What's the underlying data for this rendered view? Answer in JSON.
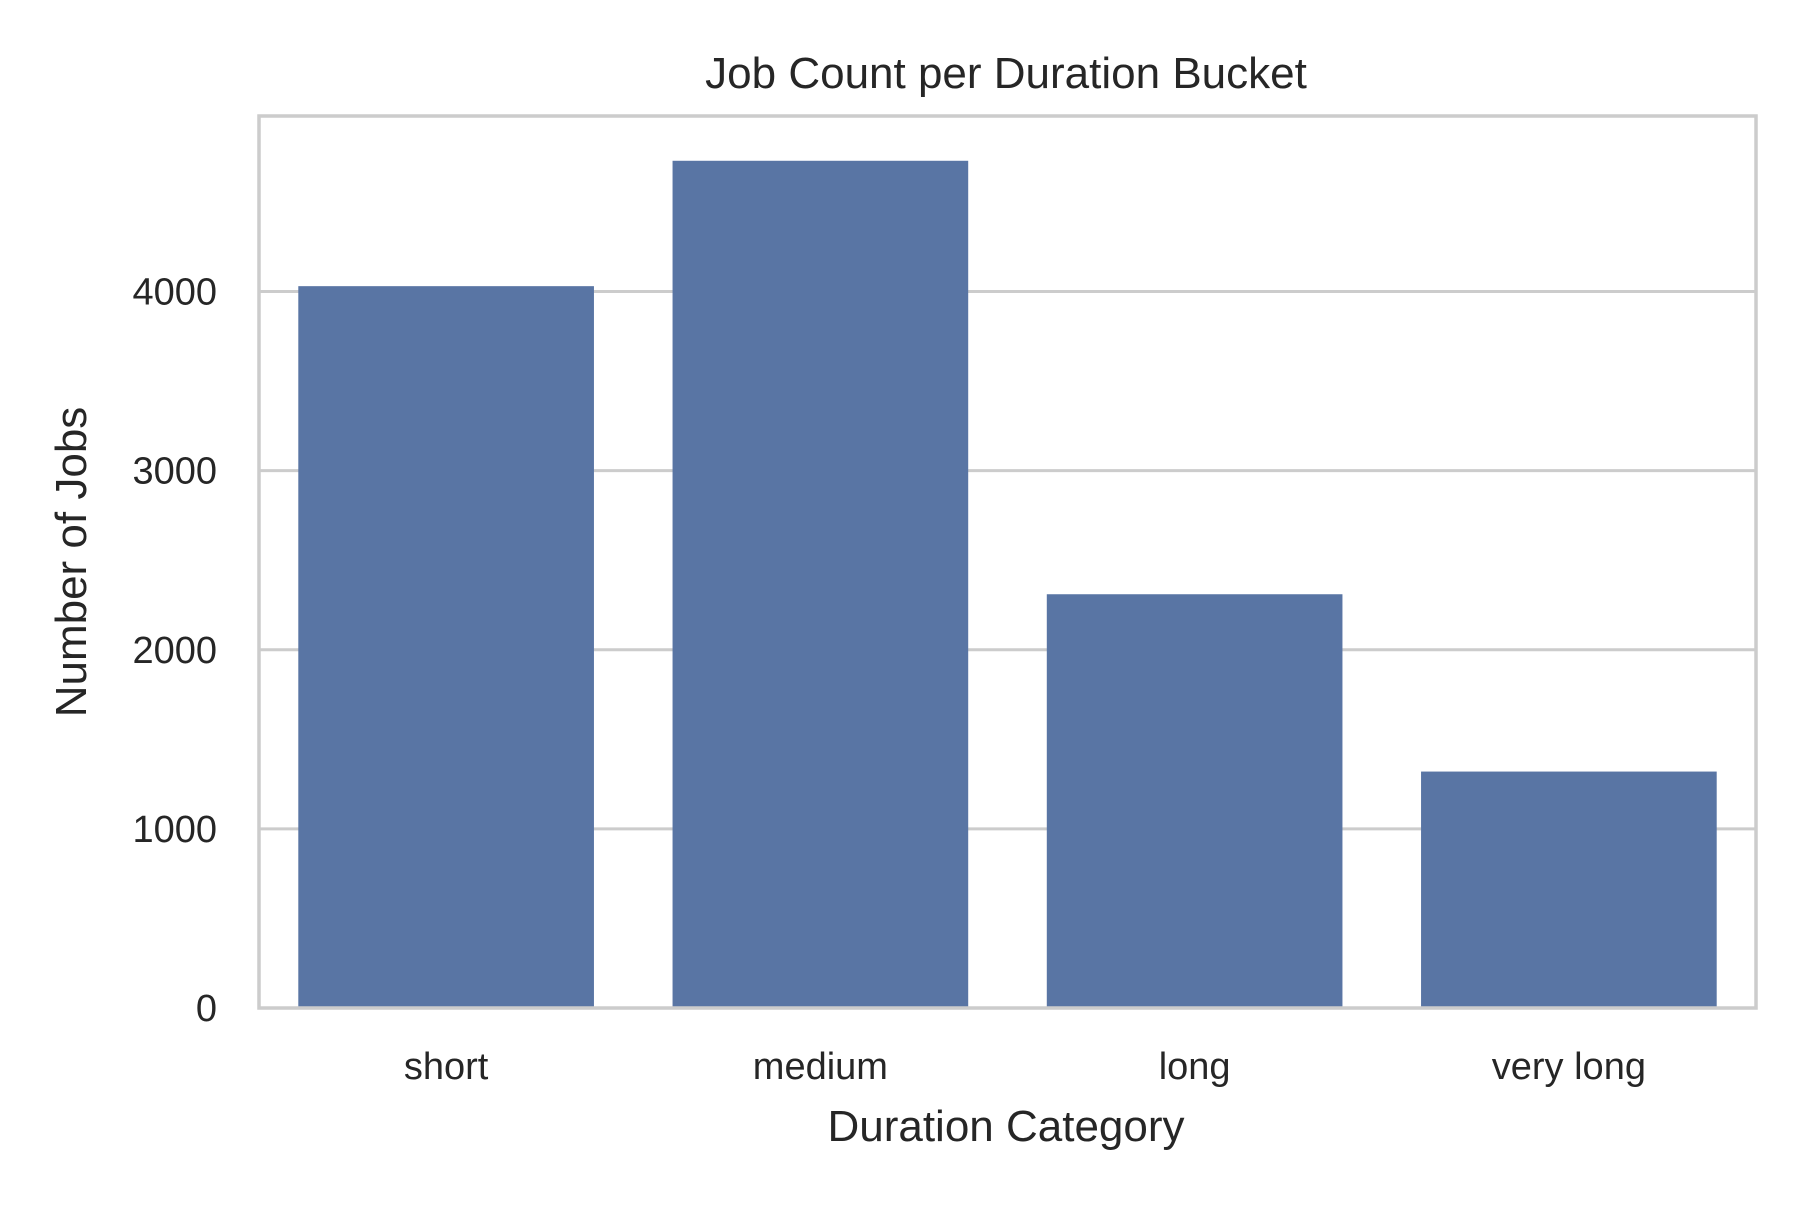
{
  "chart_data": {
    "type": "bar",
    "title": "Job Count per Duration Bucket",
    "xlabel": "Duration Category",
    "ylabel": "Number of Jobs",
    "categories": [
      "short",
      "medium",
      "long",
      "very long"
    ],
    "values": [
      4030,
      4730,
      2310,
      1320
    ],
    "ylim": [
      0,
      4980
    ],
    "yticks": [
      0,
      1000,
      2000,
      3000,
      4000
    ],
    "ytick_labels": [
      "0",
      "1000",
      "2000",
      "3000",
      "4000"
    ],
    "grid": "horizontal",
    "bar_color": "#5975a4",
    "grid_color": "#cccccc",
    "text_color": "#262626",
    "background": "#ffffff"
  }
}
